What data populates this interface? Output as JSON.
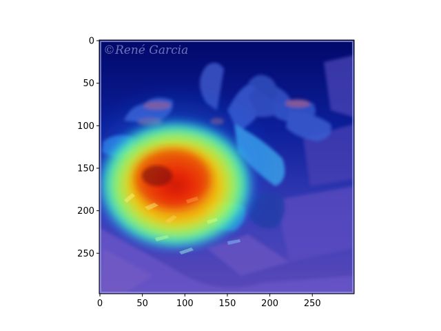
{
  "image": {
    "watermark_text": "©René Garcia",
    "colormap": "jet",
    "overlay_description_colors": {
      "hot": "#ff2a00",
      "warm": "#ffd400",
      "mid": "#33ff99",
      "cool": "#1e5bff",
      "cold": "#000a7a"
    }
  },
  "axes": {
    "x_ticks": [
      {
        "value": 0,
        "label": "0"
      },
      {
        "value": 50,
        "label": "50"
      },
      {
        "value": 100,
        "label": "100"
      },
      {
        "value": 150,
        "label": "150"
      },
      {
        "value": 200,
        "label": "200"
      },
      {
        "value": 250,
        "label": "250"
      }
    ],
    "y_ticks": [
      {
        "value": 0,
        "label": "0"
      },
      {
        "value": 50,
        "label": "50"
      },
      {
        "value": 100,
        "label": "100"
      },
      {
        "value": 150,
        "label": "150"
      },
      {
        "value": 200,
        "label": "200"
      },
      {
        "value": 250,
        "label": "250"
      }
    ],
    "x_range": [
      0,
      299
    ],
    "y_range": [
      0,
      299
    ]
  }
}
